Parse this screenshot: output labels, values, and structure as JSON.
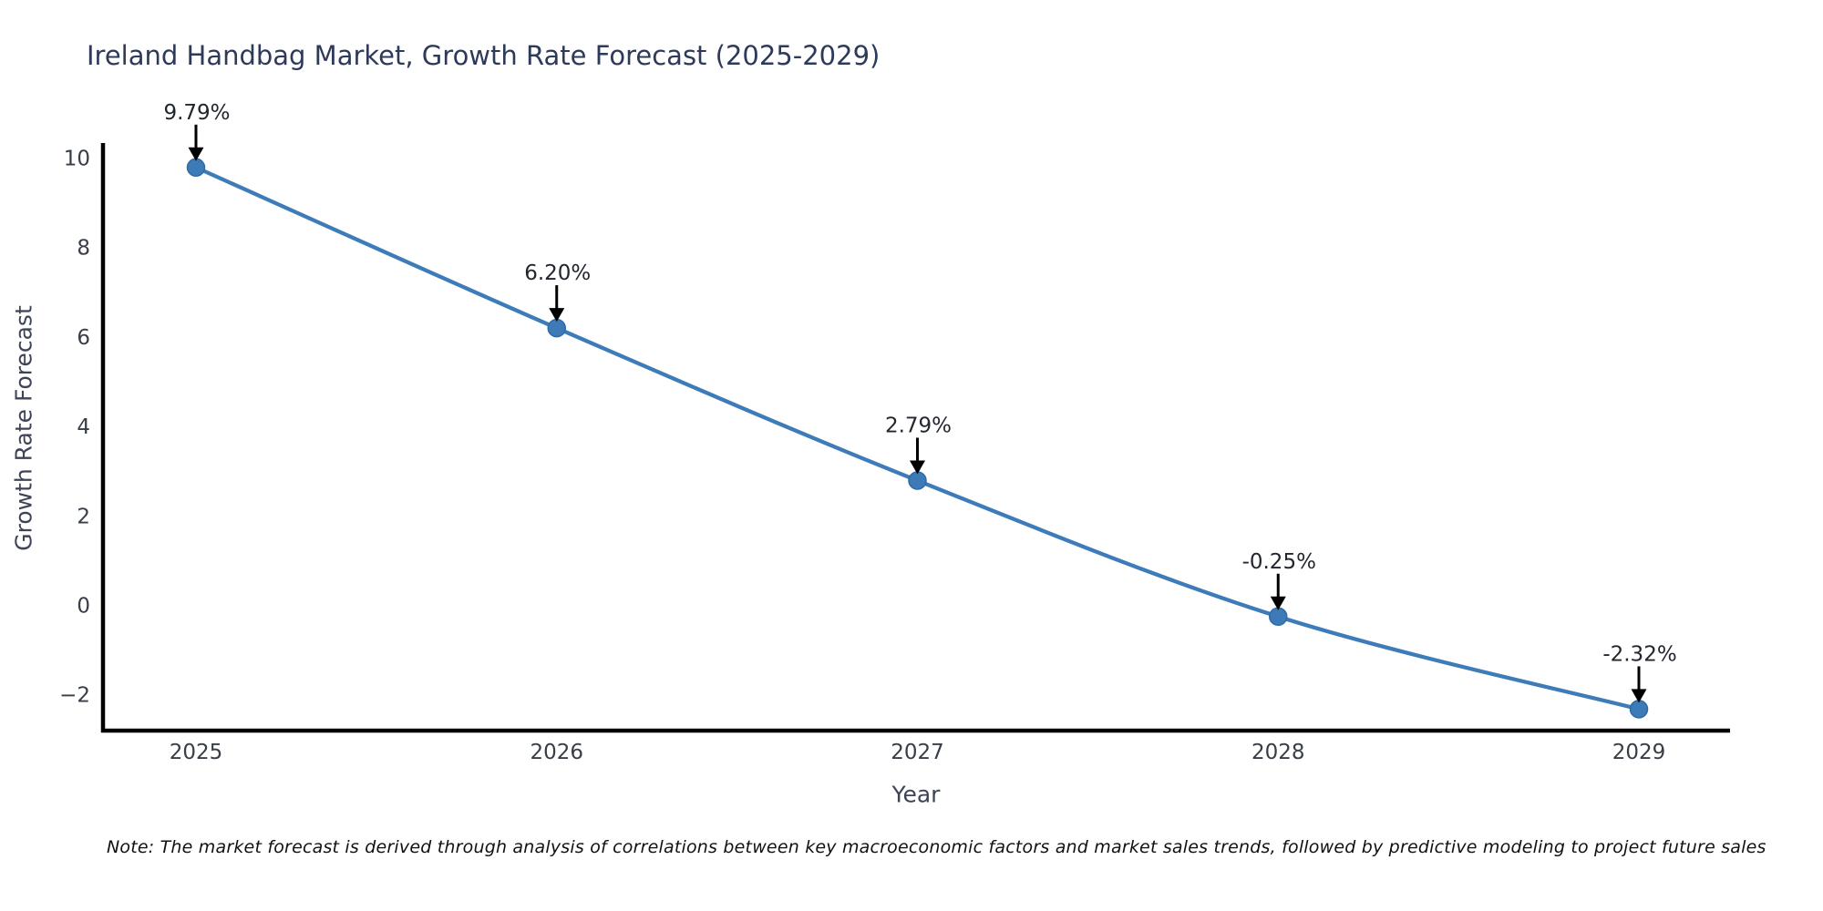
{
  "note": "Note: The market forecast is derived through analysis of correlations between key macroeconomic factors and market sales trends, followed by predictive modeling to project future sales",
  "chart_data": {
    "type": "line",
    "title": "Ireland Handbag Market, Growth Rate Forecast (2025-2029)",
    "xlabel": "Year",
    "ylabel": "Growth Rate Forecast",
    "x": [
      2025,
      2026,
      2027,
      2028,
      2029
    ],
    "series": [
      {
        "name": "Growth Rate Forecast",
        "values": [
          9.79,
          6.2,
          2.79,
          -0.25,
          -2.32
        ],
        "point_labels": [
          "9.79%",
          "6.20%",
          "2.79%",
          "-0.25%",
          "-2.32%"
        ]
      }
    ],
    "x_tick_labels": [
      "2025",
      "2026",
      "2027",
      "2028",
      "2029"
    ],
    "y_ticks": [
      10,
      8,
      6,
      4,
      2,
      0,
      -2
    ],
    "y_tick_labels": [
      "10",
      "8",
      "6",
      "4",
      "2",
      "0",
      "−2"
    ],
    "xlim": [
      2024.74,
      2029.25
    ],
    "ylim": [
      -2.8,
      10.35
    ],
    "grid": false,
    "legend_position": "none",
    "marker": "circle",
    "annotation_arrows": true,
    "colors": {
      "line": "#3d7cb8",
      "marker": "#3d7bb8",
      "marker_edge": "#2f6ba3",
      "axis": "#000000",
      "title": "#2e3a59",
      "axis_label": "#3d4455",
      "tick": "#383e47",
      "annotation": "#22262e",
      "arrow": "#000000",
      "note": "#111111",
      "background": "#ffffff"
    }
  }
}
